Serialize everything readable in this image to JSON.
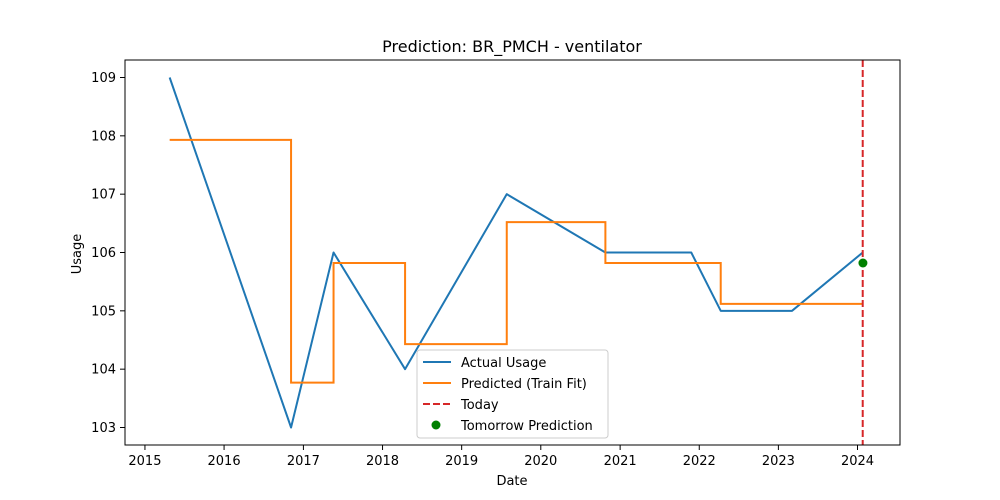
{
  "chart_data": {
    "type": "line",
    "title": "Prediction: BR_PMCH - ventilator",
    "xlabel": "Date",
    "ylabel": "Usage",
    "xlim": [
      "2014-10-01",
      "2024-07-15"
    ],
    "ylim": [
      102.7,
      109.3
    ],
    "x_ticks": [
      "2015",
      "2016",
      "2017",
      "2018",
      "2019",
      "2020",
      "2021",
      "2022",
      "2023",
      "2024"
    ],
    "y_ticks": [
      "103",
      "104",
      "105",
      "106",
      "107",
      "108",
      "109"
    ],
    "grid": false,
    "legend_position": "lower-center",
    "series": [
      {
        "name": "Actual Usage",
        "style": "line",
        "color": "#1f77b4",
        "x": [
          "2015-04-25",
          "2016-11-05",
          "2017-05-20",
          "2018-04-15",
          "2019-07-28",
          "2020-10-25",
          "2021-11-25",
          "2022-04-10",
          "2023-03-05",
          "2024-01-25"
        ],
        "y": [
          109,
          103,
          106,
          104,
          107,
          106,
          106,
          105,
          105,
          106
        ]
      },
      {
        "name": "Predicted (Train Fit)",
        "style": "step",
        "color": "#ff7f0e",
        "x": [
          "2015-04-25",
          "2016-11-05",
          "2017-05-20",
          "2018-04-15",
          "2019-07-28",
          "2020-10-25",
          "2022-04-10",
          "2024-01-25"
        ],
        "y": [
          107.93,
          103.77,
          105.82,
          104.43,
          106.52,
          105.82,
          105.12,
          105.12
        ]
      },
      {
        "name": "Today",
        "style": "vline-dashed",
        "color": "#d62728",
        "x": [
          "2024-01-25"
        ]
      },
      {
        "name": "Tomorrow Prediction",
        "style": "scatter",
        "color": "#008000",
        "x": [
          "2024-01-26"
        ],
        "y": [
          105.82
        ]
      }
    ]
  }
}
